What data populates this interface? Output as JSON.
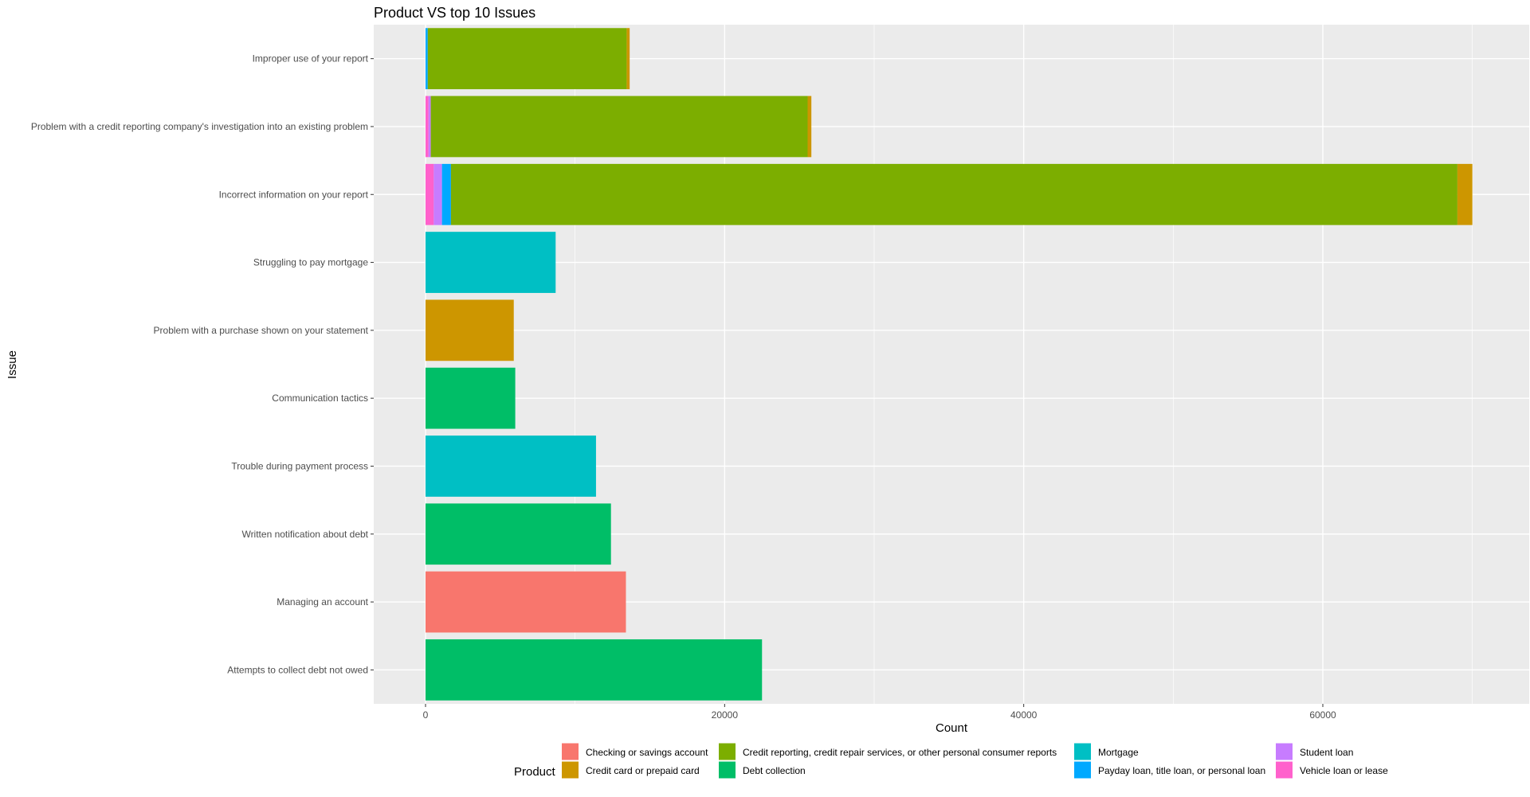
{
  "chart_data": {
    "type": "bar",
    "orientation": "horizontal",
    "stacked": true,
    "title": "Product VS top 10 Issues",
    "xlabel": "Count",
    "ylabel": "Issue",
    "xlim": [
      0,
      73000
    ],
    "x_ticks": [
      0,
      20000,
      40000,
      60000
    ],
    "x_tick_labels": [
      "0",
      "20000",
      "40000",
      "60000"
    ],
    "grid": true,
    "legend_position": "bottom",
    "legend_title": "Product",
    "categories": [
      "Attempts to collect debt not owed",
      "Managing an account",
      "Written notification about debt",
      "Trouble during payment process",
      "Communication tactics",
      "Problem with a purchase shown on your statement",
      "Struggling to pay mortgage",
      "Incorrect information on your report",
      "Problem with a credit reporting company's investigation into an existing problem",
      "Improper use of your report"
    ],
    "series": [
      {
        "name": "Checking or savings account",
        "color": "#F8766D",
        "values": [
          0,
          13400,
          0,
          0,
          0,
          0,
          0,
          0,
          0,
          0
        ]
      },
      {
        "name": "Credit card or prepaid card",
        "color": "#CD9600",
        "values": [
          0,
          0,
          0,
          0,
          0,
          5900,
          0,
          1000,
          250,
          200
        ]
      },
      {
        "name": "Credit reporting, credit repair services, or other personal consumer reports",
        "color": "#7CAE00",
        "values": [
          0,
          0,
          0,
          0,
          0,
          0,
          0,
          67300,
          25200,
          13300
        ]
      },
      {
        "name": "Debt collection",
        "color": "#00BE67",
        "values": [
          22500,
          0,
          12400,
          0,
          6000,
          0,
          0,
          0,
          0,
          0
        ]
      },
      {
        "name": "Mortgage",
        "color": "#00BFC4",
        "values": [
          0,
          0,
          0,
          11400,
          0,
          0,
          8700,
          0,
          0,
          0
        ]
      },
      {
        "name": "Payday loan, title loan, or personal loan",
        "color": "#00A9FF",
        "values": [
          0,
          0,
          0,
          0,
          0,
          0,
          0,
          600,
          0,
          150
        ]
      },
      {
        "name": "Student loan",
        "color": "#C77CFF",
        "values": [
          0,
          0,
          0,
          0,
          0,
          0,
          0,
          550,
          150,
          0
        ]
      },
      {
        "name": "Vehicle loan or lease",
        "color": "#FF61CC",
        "values": [
          0,
          0,
          0,
          0,
          0,
          0,
          0,
          550,
          200,
          0
        ]
      }
    ],
    "stack_order": [
      "Vehicle loan or lease",
      "Student loan",
      "Payday loan, title loan, or personal loan",
      "Mortgage",
      "Debt collection",
      "Credit reporting, credit repair services, or other personal consumer reports",
      "Credit card or prepaid card",
      "Checking or savings account"
    ],
    "legend_layout": [
      [
        "Checking or savings account",
        "Credit card or prepaid card"
      ],
      [
        "Credit reporting, credit repair services, or other personal consumer reports",
        "Debt collection"
      ],
      [
        "Mortgage",
        "Payday loan, title loan, or personal loan"
      ],
      [
        "Student loan",
        "Vehicle loan or lease"
      ]
    ]
  }
}
